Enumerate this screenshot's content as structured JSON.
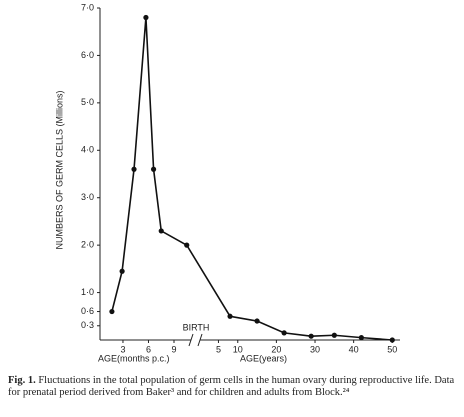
{
  "chart_data": [
    {
      "type": "line",
      "y_label": "NUMBERS OF GERM CELLS (Millions)",
      "x_label": "AGE(months p.c.)",
      "x": [
        1.7,
        2.9,
        4.3,
        5.7,
        6.6,
        7.5,
        10.5
      ],
      "series": [
        {
          "color": "#111111",
          "values": [
            0.6,
            1.45,
            3.6,
            6.8,
            3.6,
            2.3,
            2.0
          ]
        }
      ],
      "xlim": [
        0.3,
        11
      ],
      "xticks": [
        3,
        6,
        9
      ],
      "ylim": [
        0,
        7.0
      ],
      "yticks": [
        {
          "value": 0.3,
          "label": "0·3"
        },
        {
          "value": 0.6,
          "label": "0·6"
        },
        {
          "value": 1.0,
          "label": "1·0"
        },
        {
          "value": 2.0,
          "label": "2·0"
        },
        {
          "value": 3.0,
          "label": "3·0"
        },
        {
          "value": 4.0,
          "label": "4·0"
        },
        {
          "value": 5.0,
          "label": "5·0"
        },
        {
          "value": 6.0,
          "label": "6·0"
        },
        {
          "value": 7.0,
          "label": "7·0"
        }
      ]
    },
    {
      "type": "line",
      "x_label": "AGE(years)",
      "x": [
        8,
        15,
        22,
        29,
        35,
        42,
        50
      ],
      "series": [
        {
          "color": "#111111",
          "values": [
            0.5,
            0.4,
            0.15,
            0.08,
            0.1,
            0.05,
            0.0
          ]
        }
      ],
      "xlim": [
        1,
        52
      ],
      "xticks": [
        5,
        10,
        20,
        30,
        40,
        50
      ],
      "ylim": [
        0,
        7.0
      ]
    }
  ],
  "annotation": "BIRTH",
  "caption_label": "Fig. 1.",
  "caption": "Fluctuations in the total population of germ cells in the human ovary during reproductive life. Data for prenatal period derived from Baker³ and for children and adults from Block.²⁴"
}
